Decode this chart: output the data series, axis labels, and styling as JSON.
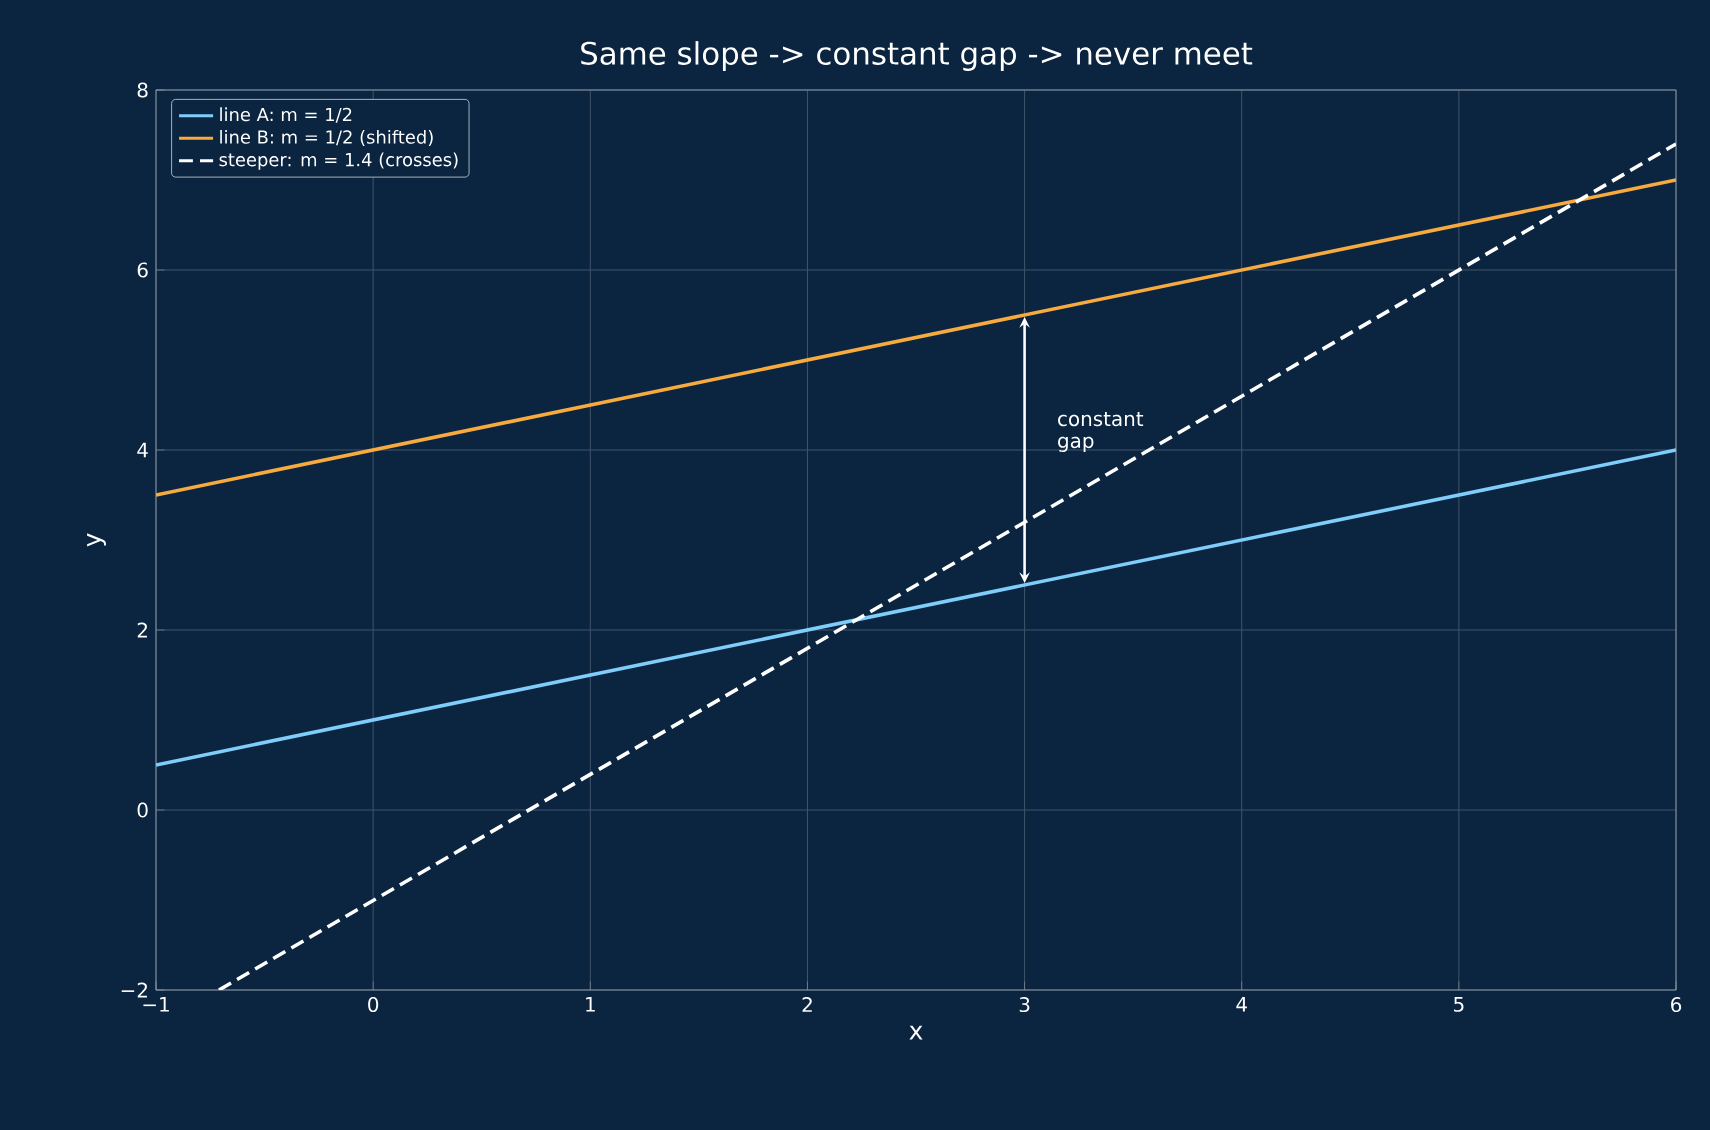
{
  "chart_data": {
    "type": "line",
    "title": "Same slope -> constant gap -> never meet",
    "xlabel": "x",
    "ylabel": "y",
    "xlim": [
      -1,
      6
    ],
    "ylim": [
      -2,
      8
    ],
    "xticks": [
      {
        "value": -1,
        "label": "−1"
      },
      0,
      1,
      2,
      3,
      4,
      5,
      6
    ],
    "yticks": [
      {
        "value": -2,
        "label": "−2"
      },
      0,
      2,
      4,
      6,
      8
    ],
    "series": [
      {
        "name": "line A: m = 1/2",
        "color": "#7fcdfb",
        "x": [
          -1,
          6
        ],
        "values": [
          0.5,
          4
        ]
      },
      {
        "name": "line B: m = 1/2 (shifted)",
        "color": "#f7aa3e",
        "x": [
          -1,
          6
        ],
        "values": [
          3.5,
          7
        ]
      },
      {
        "name": "steeper: m = 1.4 (crosses)",
        "color": "#ffffff",
        "line_style": "dashed",
        "x": [
          -0.71,
          6
        ],
        "values": [
          -2,
          7.4
        ]
      }
    ],
    "annotations": [
      "constant gap"
    ],
    "grid": true,
    "legend": "top left"
  }
}
